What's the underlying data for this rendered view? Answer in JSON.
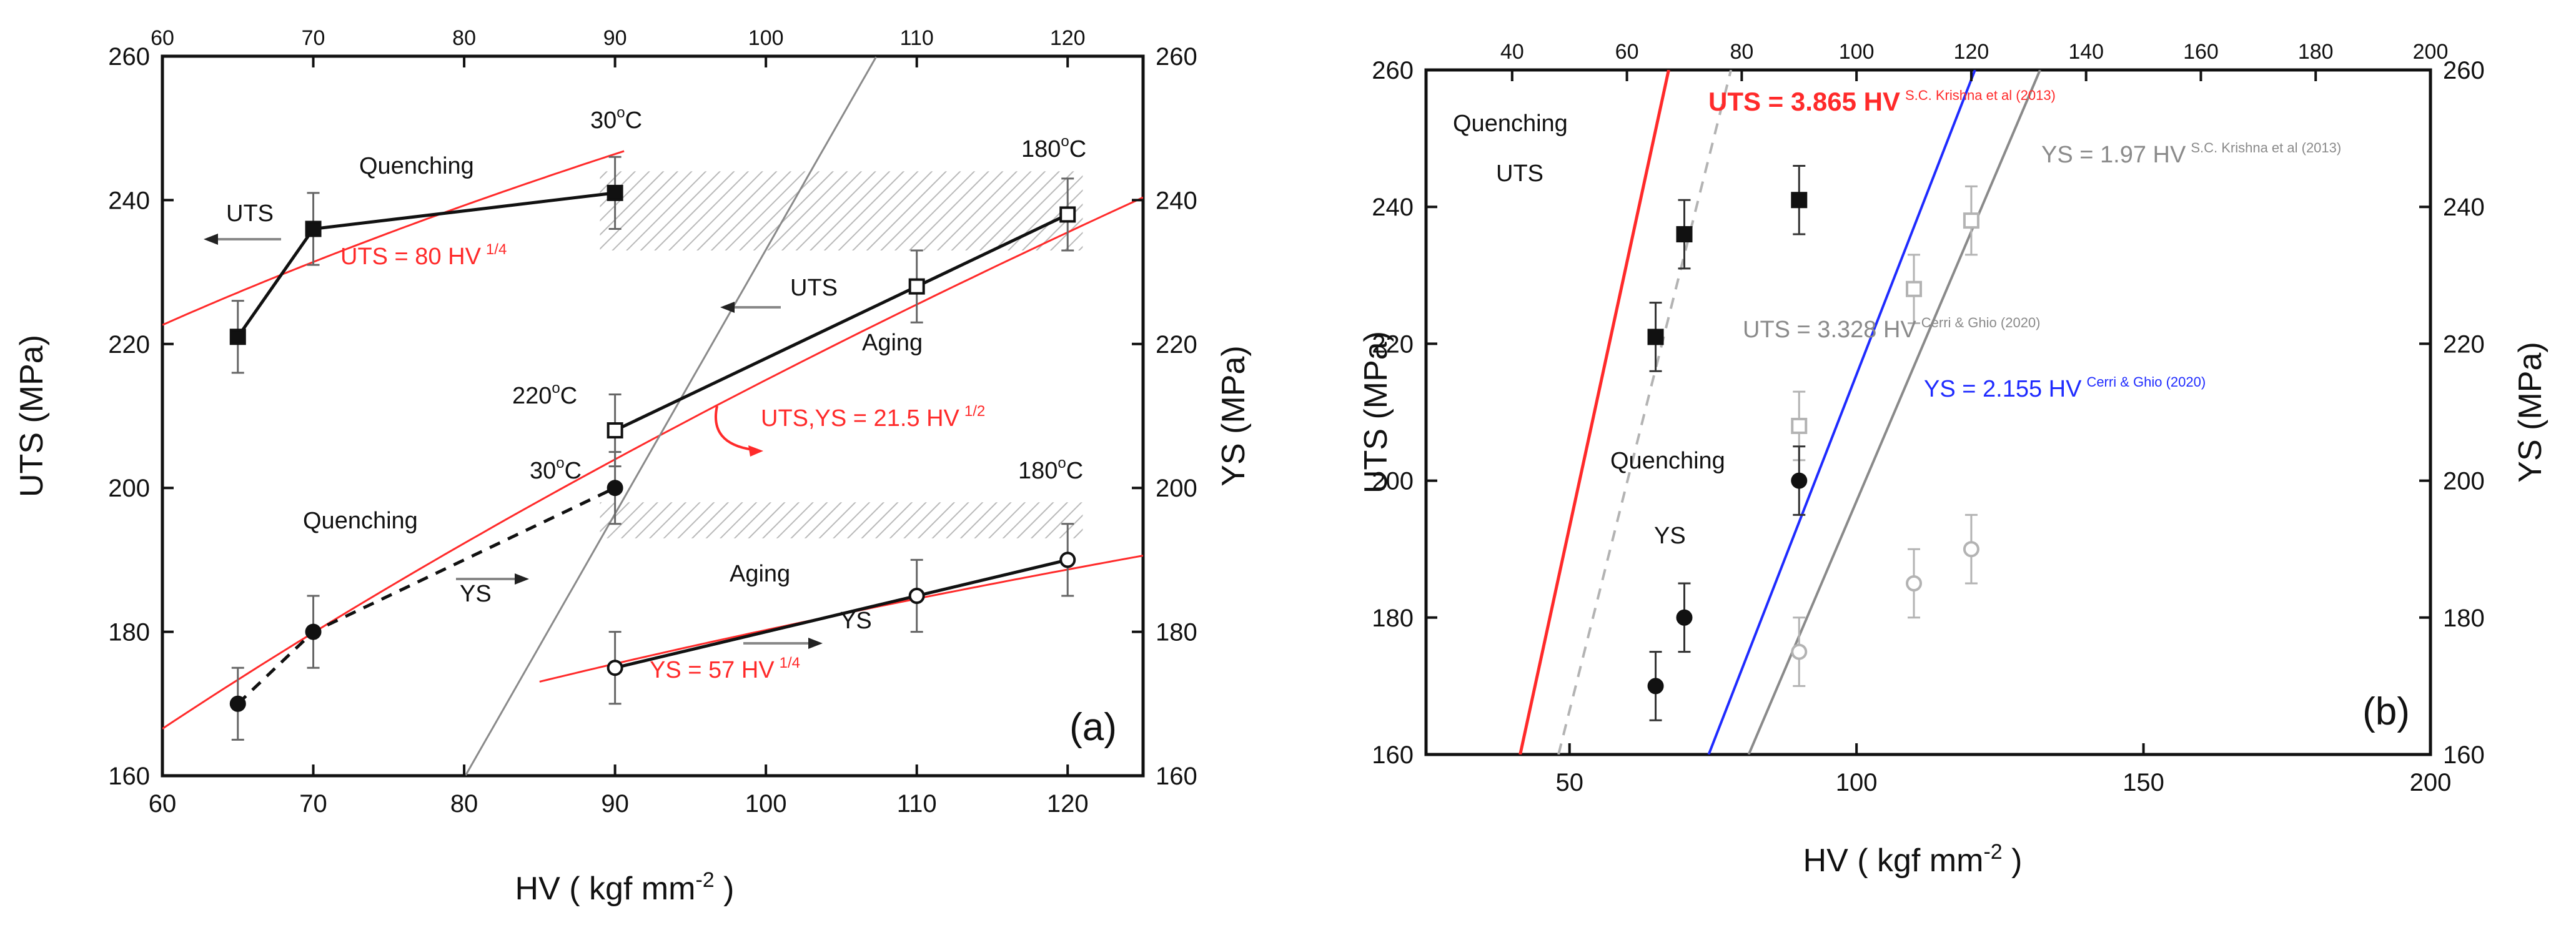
{
  "colors": {
    "black": "#111111",
    "red": "#ff2a2a",
    "gray": "#8a8a8a",
    "light_gray": "#b3b3b3",
    "blue": "#1f2bff",
    "hatch": "#b9b9b9"
  },
  "chart_data": [
    {
      "panel": "a",
      "type": "scatter",
      "panel_label": "(a)",
      "xlabel": "HV ( kgf mm",
      "xlabel_sup": "-2",
      "xlabel_tail": " )",
      "ylabel_left": "UTS (MPa)",
      "ylabel_right": "YS (MPa)",
      "xlim": [
        60,
        125
      ],
      "ylim": [
        160,
        260
      ],
      "x_ticks": [
        60,
        70,
        80,
        90,
        100,
        110,
        120
      ],
      "x_tick_labels": [
        "60",
        "70",
        "80",
        "90",
        "100",
        "110",
        "120"
      ],
      "top_ticks": [
        60,
        70,
        80,
        90,
        100,
        110,
        120
      ],
      "top_tick_labels": [
        "60",
        "70",
        "80",
        "90",
        "100",
        "110",
        "120"
      ],
      "y_ticks": [
        160,
        180,
        200,
        220,
        240,
        260
      ],
      "y_tick_labels": [
        "160",
        "180",
        "200",
        "220",
        "240",
        "260"
      ],
      "right_tick_labels": [
        "160",
        "180",
        "200",
        "220",
        "240",
        "260"
      ],
      "series": [
        {
          "name": "UTS quenching",
          "marker": "filled-square",
          "line": "solid",
          "x": [
            65,
            70,
            90
          ],
          "y": [
            221,
            236,
            241
          ],
          "err": [
            5,
            5,
            5
          ]
        },
        {
          "name": "UTS aging",
          "marker": "open-square",
          "line": "solid",
          "x": [
            90,
            110,
            120
          ],
          "y": [
            208,
            228,
            238
          ],
          "err": [
            5,
            5,
            5
          ]
        },
        {
          "name": "YS quenching",
          "marker": "filled-circle",
          "line": "dashed",
          "x": [
            65,
            70,
            90
          ],
          "y": [
            170,
            180,
            200
          ],
          "err": [
            5,
            5,
            5
          ]
        },
        {
          "name": "YS aging",
          "marker": "open-circle",
          "line": "solid",
          "x": [
            90,
            110,
            120
          ],
          "y": [
            175,
            185,
            190
          ],
          "err": [
            5,
            5,
            5
          ]
        }
      ],
      "fits": [
        {
          "name": "UTS = 80 HV^1/4",
          "color": "red",
          "x_range": [
            60,
            90.6
          ],
          "coef": 80,
          "exp": 0.25
        },
        {
          "name": "UTS,YS = 21.5 HV^1/2",
          "color": "red",
          "x_range": [
            60,
            125
          ],
          "coef": 21.5,
          "exp": 0.5
        },
        {
          "name": "YS = 57 HV^1/4",
          "color": "red",
          "x_range": [
            85,
            125
          ],
          "coef": 57,
          "exp": 0.25
        },
        {
          "name": "Linear reference",
          "color": "gray",
          "x_range": [
            80.1,
            107.3
          ],
          "slope": 3.67,
          "intercept": -133.9
        }
      ],
      "hatch_regions": [
        {
          "x": [
            89,
            121
          ],
          "y": [
            233,
            244
          ]
        },
        {
          "x": [
            89,
            121
          ],
          "y": [
            193,
            198
          ]
        }
      ],
      "annotations": {
        "quenching_uts": "Quenching",
        "uts_upper": "UTS",
        "temp_30_upper": "30",
        "temp_180_upper": "180",
        "uts_fit_label": "UTS = 80 HV",
        "uts_fit_sup": "1/4",
        "uts_middle": "UTS",
        "aging_upper": "Aging",
        "temp_220": "220",
        "root_fit_label": "UTS,YS = 21.5 HV",
        "root_fit_sup": "1/2",
        "temp_30_lower": "30",
        "temp_180_lower": "180",
        "quenching_ys": "Quenching",
        "ys_left": "YS",
        "aging_lower": "Aging",
        "ys_right": "YS",
        "ys_fit_label": "YS = 57 HV",
        "ys_fit_sup": "1/4",
        "degree_unit": "o",
        "celsius": "C"
      }
    },
    {
      "panel": "b",
      "type": "scatter",
      "panel_label": "(b)",
      "xlabel": "HV ( kgf mm",
      "xlabel_sup": "-2",
      "xlabel_tail": " )",
      "ylabel_left": "UTS (MPa)",
      "ylabel_right": "YS (MPa)",
      "xlim": [
        25,
        200
      ],
      "ylim": [
        160,
        260
      ],
      "x_ticks": [
        50,
        100,
        150,
        200
      ],
      "x_tick_labels": [
        "50",
        "100",
        "150",
        "200"
      ],
      "top_ticks": [
        40,
        60,
        80,
        100,
        120,
        140,
        160,
        180,
        200
      ],
      "top_tick_labels": [
        "40",
        "60",
        "80",
        "100",
        "120",
        "140",
        "160",
        "180",
        "200"
      ],
      "y_ticks": [
        160,
        180,
        200,
        220,
        240,
        260
      ],
      "y_tick_labels": [
        "160",
        "180",
        "200",
        "220",
        "240",
        "260"
      ],
      "right_tick_labels": [
        "160",
        "180",
        "200",
        "220",
        "240",
        "260"
      ],
      "series": [
        {
          "name": "UTS quenching",
          "marker": "filled-square",
          "color": "black",
          "x": [
            65,
            70,
            90
          ],
          "y": [
            221,
            236,
            241
          ],
          "err": [
            5,
            5,
            5
          ]
        },
        {
          "name": "UTS aging",
          "marker": "open-square",
          "color": "light_gray",
          "x": [
            90,
            110,
            120
          ],
          "y": [
            208,
            228,
            238
          ],
          "err": [
            5,
            5,
            5
          ]
        },
        {
          "name": "YS quenching",
          "marker": "filled-circle",
          "color": "black",
          "x": [
            65,
            70,
            90
          ],
          "y": [
            170,
            180,
            200
          ],
          "err": [
            5,
            5,
            5
          ]
        },
        {
          "name": "YS aging",
          "marker": "open-circle",
          "color": "light_gray",
          "x": [
            90,
            110,
            120
          ],
          "y": [
            175,
            185,
            190
          ],
          "err": [
            5,
            5,
            5
          ]
        }
      ],
      "fits": [
        {
          "name": "UTS = 3.865 HV",
          "color": "red",
          "style": "solid",
          "slope": 3.865,
          "y_range": [
            160,
            260
          ]
        },
        {
          "name": "UTS = 3.328 HV",
          "color": "light_gray",
          "style": "dashed",
          "slope": 3.328,
          "y_range": [
            160,
            260
          ]
        },
        {
          "name": "YS = 2.155 HV",
          "color": "blue",
          "style": "solid",
          "slope": 2.155,
          "y_range": [
            160,
            260
          ]
        },
        {
          "name": "YS = 1.97 HV",
          "color": "gray",
          "style": "solid",
          "slope": 1.97,
          "y_range": [
            160,
            260
          ]
        }
      ],
      "annotations": {
        "quenching_uts": "Quenching",
        "uts": "UTS",
        "quenching_ys": "Quenching",
        "ys": "YS",
        "red_fit_label": "UTS = 3.865 HV",
        "red_fit_sup": "S.C. Krishna et al (2013)",
        "gray_fit_label": "YS = 1.97 HV",
        "gray_fit_sup": "S.C. Krishna et al (2013)",
        "dashed_fit_label": "UTS = 3.328 HV",
        "dashed_fit_sup": "Cerri & Ghio (2020)",
        "blue_fit_label": "YS = 2.155 HV",
        "blue_fit_sup": "Cerri & Ghio (2020)"
      }
    }
  ]
}
